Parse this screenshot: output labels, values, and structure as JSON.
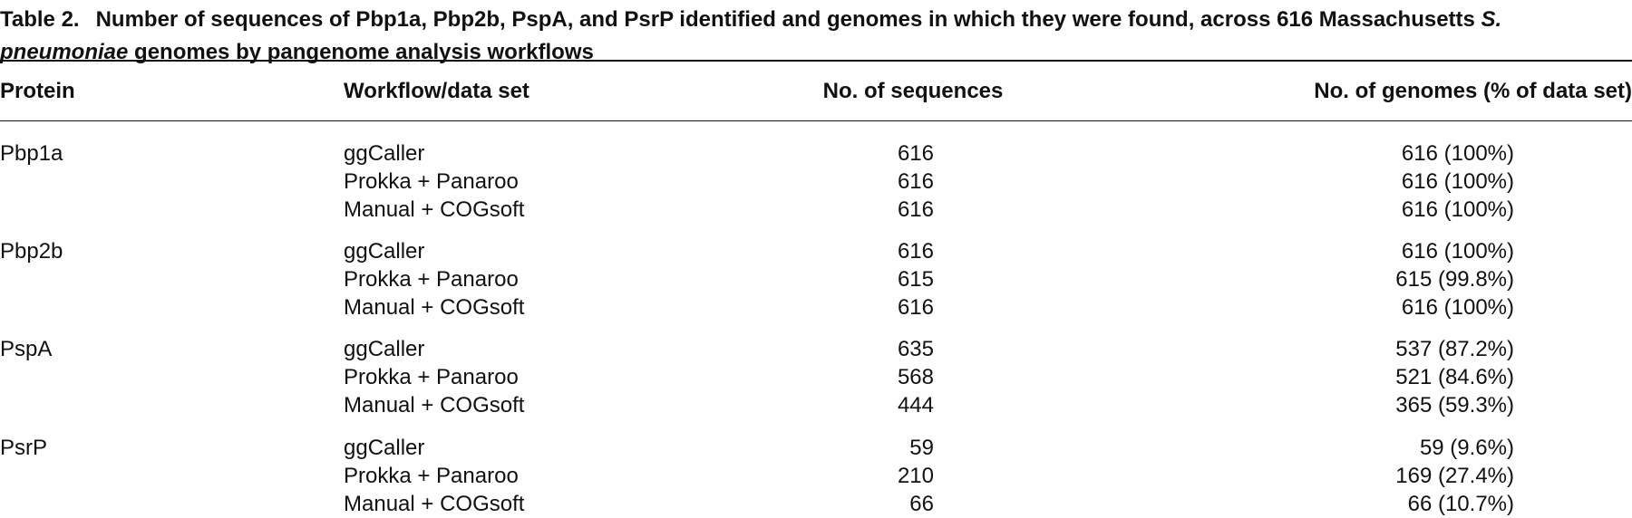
{
  "caption": {
    "label": "Table 2.",
    "text_before": "Number of sequences of Pbp1a, Pbp2b, PspA, and PsrP identified and genomes in which they were found, across 616 Massachusetts",
    "italic": "S. pneumoniae",
    "text_after": "genomes by pangenome analysis workflows"
  },
  "table": {
    "header": [
      "Protein",
      "Workflow/data set",
      "No. of sequences",
      "No. of genomes (% of data set)"
    ],
    "groups": [
      {
        "protein": "Pbp1a",
        "rows": [
          [
            "ggCaller",
            616,
            "616 (100%)"
          ],
          [
            "Prokka + Panaroo",
            616,
            "616 (100%)"
          ],
          [
            "Manual + COGsoft",
            616,
            "616 (100%)"
          ]
        ]
      },
      {
        "protein": "Pbp2b",
        "rows": [
          [
            "ggCaller",
            616,
            "616 (100%)"
          ],
          [
            "Prokka + Panaroo",
            615,
            "615 (99.8%)"
          ],
          [
            "Manual + COGsoft",
            616,
            "616 (100%)"
          ]
        ]
      },
      {
        "protein": "PspA",
        "rows": [
          [
            "ggCaller",
            635,
            "537 (87.2%)"
          ],
          [
            "Prokka + Panaroo",
            568,
            "521 (84.6%)"
          ],
          [
            "Manual + COGsoft",
            444,
            "365 (59.3%)"
          ]
        ]
      },
      {
        "protein": "PsrP",
        "rows": [
          [
            "ggCaller",
            59,
            "59 (9.6%)"
          ],
          [
            "Prokka + Panaroo",
            210,
            "169 (27.4%)"
          ],
          [
            "Manual + COGsoft",
            66,
            "66 (10.7%)"
          ]
        ]
      }
    ]
  }
}
